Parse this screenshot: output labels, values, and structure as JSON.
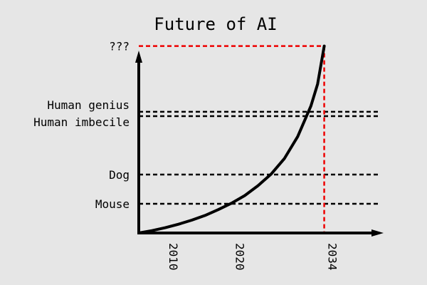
{
  "chart_data": {
    "type": "line",
    "title": "Future of AI",
    "xlabel": "",
    "ylabel": "",
    "x_ticks": [
      "2010",
      "2020",
      "2034"
    ],
    "x_range": [
      2006,
      2042
    ],
    "y_levels": [
      {
        "label": "Mouse",
        "level": 1
      },
      {
        "label": "Dog",
        "level": 2
      },
      {
        "label": "Human imbecile",
        "level": 4
      },
      {
        "label": "Human genius",
        "level": 4.15
      },
      {
        "label": "???",
        "level": 6.4
      }
    ],
    "y_range": [
      0,
      7
    ],
    "series": [
      {
        "values": [
          [
            2006,
            0
          ],
          [
            2008,
            0.08
          ],
          [
            2010,
            0.18
          ],
          [
            2012,
            0.3
          ],
          [
            2014,
            0.44
          ],
          [
            2016,
            0.6
          ],
          [
            2018,
            0.8
          ],
          [
            2020,
            1.02
          ],
          [
            2022,
            1.28
          ],
          [
            2024,
            1.62
          ],
          [
            2026,
            2.02
          ],
          [
            2028,
            2.55
          ],
          [
            2030,
            3.3
          ],
          [
            2032,
            4.35
          ],
          [
            2033,
            5.1
          ],
          [
            2034,
            6.4
          ]
        ]
      }
    ],
    "highlight_point": {
      "x": "2034",
      "y": "???"
    },
    "grid": false,
    "legend": "none",
    "colors": {
      "background": "#e6e6e6",
      "curve": "#000000",
      "reference_lines": "#000000",
      "highlight": "#ee0000"
    }
  }
}
